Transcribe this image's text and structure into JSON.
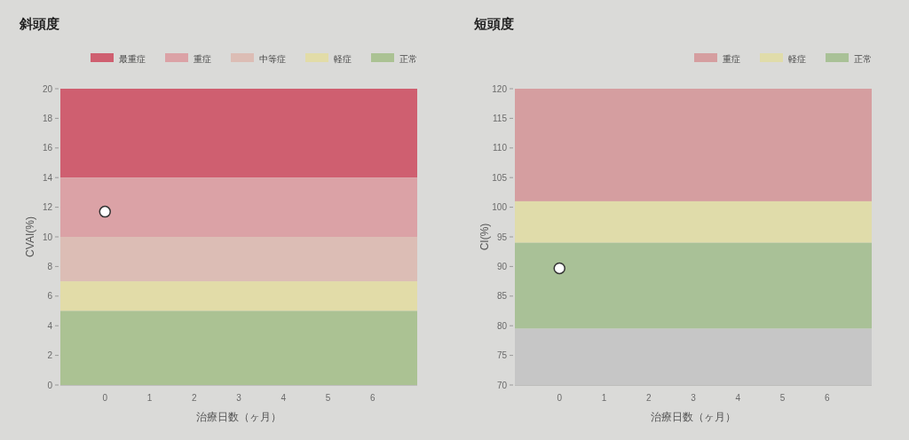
{
  "chart_data": [
    {
      "type": "scatter",
      "title": "斜頭度",
      "xlabel": "治療日数（ヶ月）",
      "ylabel": "CVAI(%)",
      "series": [
        {
          "color": "#ffffff",
          "x": [
            0
          ],
          "values": [
            11.7
          ]
        }
      ],
      "xlim": [
        -1,
        7
      ],
      "xticks": [
        0,
        1,
        2,
        3,
        4,
        5,
        6
      ],
      "ylim": [
        0,
        20
      ],
      "yticks": [
        0,
        2,
        4,
        6,
        8,
        10,
        12,
        14,
        16,
        18,
        20
      ],
      "bands": [
        {
          "axis": "y",
          "from": 14,
          "to": 20,
          "label": "最重症",
          "color": "#cf5f70"
        },
        {
          "axis": "y",
          "from": 10,
          "to": 14,
          "label": "重症",
          "color": "#dba2a6"
        },
        {
          "axis": "y",
          "from": 7,
          "to": 10,
          "label": "中等症",
          "color": "#dcbdb5"
        },
        {
          "axis": "y",
          "from": 5,
          "to": 7,
          "label": "軽症",
          "color": "#e2dca8"
        },
        {
          "axis": "y",
          "from": 0,
          "to": 5,
          "label": "正常",
          "color": "#abc293"
        }
      ],
      "legend": "top right",
      "marker": "circle"
    },
    {
      "type": "scatter",
      "title": "短頭度",
      "xlabel": "治療日数（ヶ月）",
      "ylabel": "CI(%)",
      "series": [
        {
          "color": "#ffffff",
          "x": [
            0
          ],
          "values": [
            89.7
          ]
        }
      ],
      "xlim": [
        -1,
        7
      ],
      "xticks": [
        0,
        1,
        2,
        3,
        4,
        5,
        6
      ],
      "ylim": [
        70,
        120
      ],
      "yticks": [
        70,
        75,
        80,
        85,
        90,
        95,
        100,
        105,
        110,
        115,
        120
      ],
      "bands": [
        {
          "axis": "y",
          "from": 101,
          "to": 120,
          "label": "重症",
          "color": "#d59ea0"
        },
        {
          "axis": "y",
          "from": 94,
          "to": 101,
          "label": "軽症",
          "color": "#e0dcaa"
        },
        {
          "axis": "y",
          "from": 79.5,
          "to": 94,
          "label": "正常",
          "color": "#a9c197"
        },
        {
          "axis": "y",
          "from": 70,
          "to": 79.5,
          "color": "#c6c6c6"
        }
      ],
      "legend": "top right",
      "marker": "circle"
    }
  ]
}
